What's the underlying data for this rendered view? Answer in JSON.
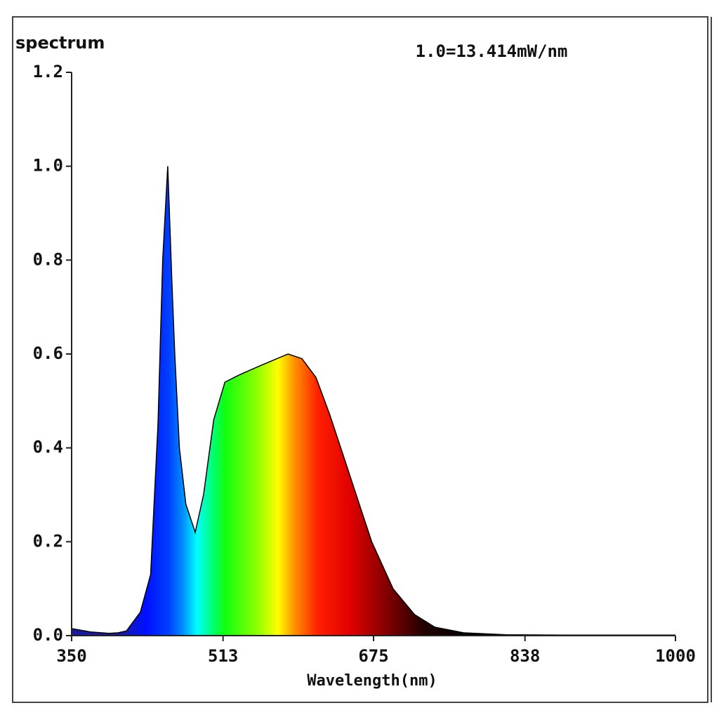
{
  "chart_data": {
    "type": "area",
    "title": "1.0=13.414mW/nm",
    "y_label": "spectrum",
    "x_label": "Wavelength(nm)",
    "x": [
      350,
      370,
      390,
      400,
      409,
      424,
      435,
      443,
      448,
      453.5,
      458,
      461,
      466,
      473,
      483,
      492,
      503,
      515,
      530,
      553,
      583,
      598,
      613,
      628,
      643,
      658,
      673,
      696,
      719,
      741,
      772,
      817,
      878,
      1000
    ],
    "series": [
      {
        "name": "spectrum",
        "color": "#000000",
        "values": [
          0.015,
          0.008,
          0.005,
          0.006,
          0.01,
          0.05,
          0.13,
          0.45,
          0.8,
          1.0,
          0.75,
          0.6,
          0.4,
          0.28,
          0.22,
          0.3,
          0.46,
          0.54,
          0.555,
          0.575,
          0.6,
          0.59,
          0.55,
          0.47,
          0.38,
          0.29,
          0.2,
          0.1,
          0.045,
          0.018,
          0.006,
          0.002,
          0.001,
          0.001
        ]
      }
    ],
    "xlim": [
      350,
      1000
    ],
    "xticks": [
      350,
      513,
      675,
      838,
      1000
    ],
    "ylim": [
      0,
      1.2
    ],
    "yticks": [
      {
        "value": 0,
        "label": "0.0"
      },
      0.2,
      0.4,
      0.6,
      0.8,
      {
        "value": 1,
        "label": "1.0"
      },
      1.2
    ],
    "grid": false,
    "fill": "spectral"
  }
}
